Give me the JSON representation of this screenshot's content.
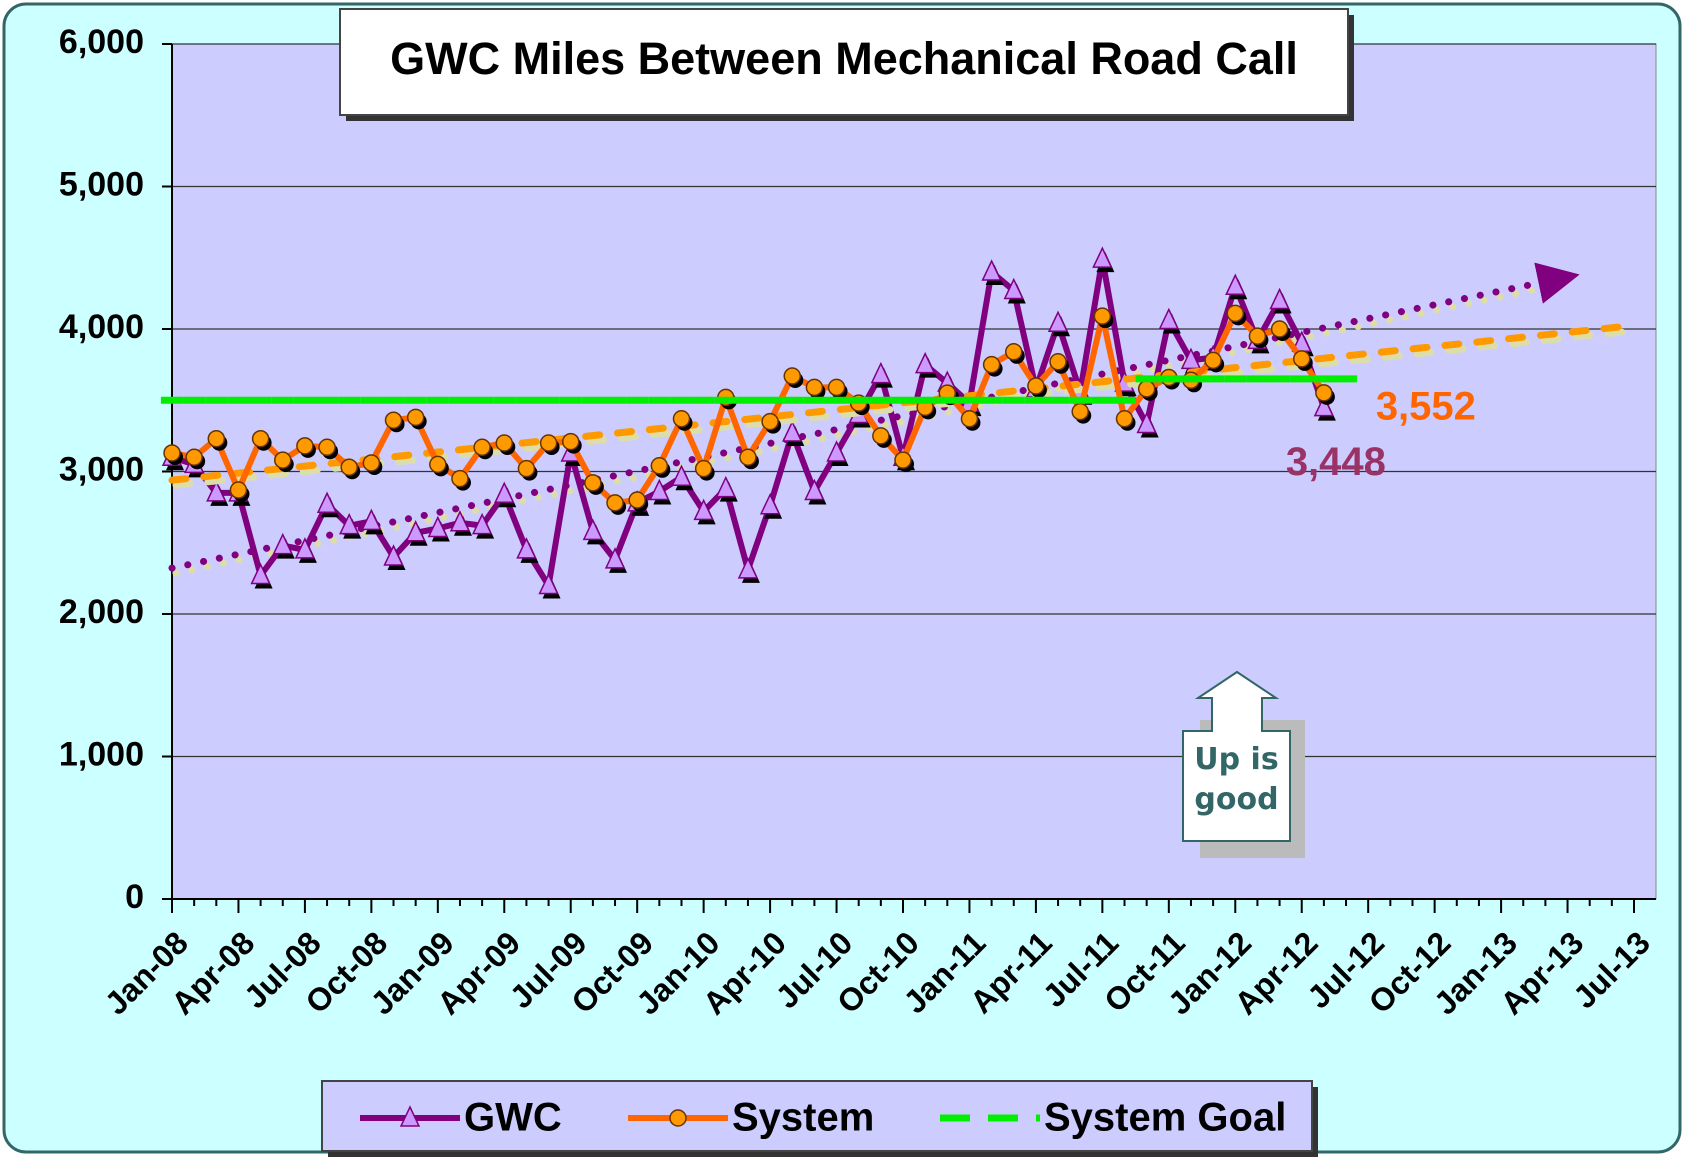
{
  "chart_data": {
    "type": "line",
    "title": "GWC Miles Between Mechanical Road Call",
    "annotation": "Up is good",
    "categories": [
      "Jan-08",
      null,
      null,
      "Apr-08",
      null,
      null,
      "Jul-08",
      null,
      null,
      "Oct-08",
      null,
      null,
      "Jan-09",
      null,
      null,
      "Apr-09",
      null,
      null,
      "Jul-09",
      null,
      null,
      "Oct-09",
      null,
      null,
      "Jan-10",
      null,
      null,
      "Apr-10",
      null,
      null,
      "Jul-10",
      null,
      null,
      "Oct-10",
      null,
      null,
      "Jan-11",
      null,
      null,
      "Apr-11",
      null,
      null,
      "Jul-11",
      null,
      null,
      "Oct-11",
      null,
      null,
      "Jan-12",
      null,
      null,
      "Apr-12",
      null,
      null,
      "Jul-12",
      null,
      null,
      "Oct-12",
      null,
      null,
      "Jan-13",
      null,
      null,
      "Apr-13",
      null,
      null,
      "Jul-13"
    ],
    "series": [
      {
        "name": "GWC",
        "color": "#800080",
        "marker": "triangle",
        "values": [
          3100,
          3050,
          2850,
          2850,
          2270,
          2480,
          2450,
          2770,
          2620,
          2650,
          2400,
          2570,
          2600,
          2640,
          2620,
          2840,
          2450,
          2200,
          3130,
          2580,
          2380,
          2780,
          2860,
          2960,
          2720,
          2880,
          2310,
          2760,
          3270,
          2860,
          3130,
          3400,
          3680,
          3100,
          3750,
          3620,
          3480,
          4400,
          4270,
          3580,
          4040,
          3560,
          4490,
          3620,
          3330,
          4060,
          3780,
          3800,
          4300,
          3920,
          4200,
          3900,
          3448,
          null,
          null,
          null,
          null,
          null,
          null,
          null,
          null,
          null,
          null,
          null,
          null,
          null,
          null
        ],
        "value_labels": [
          null,
          null,
          null,
          null,
          null,
          null,
          null,
          null,
          null,
          null,
          null,
          null,
          null,
          null,
          null,
          null,
          null,
          null,
          null,
          null,
          null,
          null,
          null,
          null,
          null,
          null,
          null,
          null,
          null,
          null,
          null,
          null,
          null,
          null,
          null,
          null,
          null,
          null,
          null,
          null,
          null,
          null,
          null,
          null,
          null,
          null,
          null,
          null,
          null,
          null,
          null,
          null,
          "3,448",
          null,
          null,
          null,
          null,
          null,
          null,
          null,
          null,
          null,
          null,
          null,
          null,
          null,
          null
        ],
        "label_color": "#993366"
      },
      {
        "name": "System",
        "color": "#ff6600",
        "marker": "circle",
        "values": [
          3130,
          3100,
          3230,
          2870,
          3230,
          3080,
          3180,
          3170,
          3030,
          3060,
          3360,
          3380,
          3050,
          2950,
          3170,
          3200,
          3020,
          3200,
          3210,
          2920,
          2780,
          2800,
          3040,
          3370,
          3020,
          3520,
          3100,
          3350,
          3670,
          3590,
          3590,
          3480,
          3250,
          3080,
          3450,
          3550,
          3370,
          3750,
          3840,
          3600,
          3770,
          3420,
          4090,
          3370,
          3580,
          3660,
          3640,
          3780,
          4110,
          3950,
          4000,
          3790,
          3552,
          null,
          null,
          null,
          null,
          null,
          null,
          null,
          null,
          null,
          null,
          null,
          null,
          null,
          null
        ],
        "value_labels": [
          null,
          null,
          null,
          null,
          null,
          null,
          null,
          null,
          null,
          null,
          null,
          null,
          null,
          null,
          null,
          null,
          null,
          null,
          null,
          null,
          null,
          null,
          null,
          null,
          null,
          null,
          null,
          null,
          null,
          null,
          null,
          null,
          null,
          null,
          null,
          null,
          null,
          null,
          null,
          null,
          null,
          null,
          null,
          null,
          null,
          null,
          null,
          null,
          null,
          null,
          null,
          null,
          "3,552",
          null,
          null,
          null,
          null,
          null,
          null,
          null,
          null,
          null,
          null,
          null,
          null,
          null,
          null
        ],
        "label_color": "#ff6600"
      },
      {
        "name": "System Goal",
        "color": "#00ee00",
        "marker": "dash",
        "values": [
          3500,
          3500,
          3500,
          3500,
          3500,
          3500,
          3500,
          3500,
          3500,
          3500,
          3500,
          3500,
          3500,
          3500,
          3500,
          3500,
          3500,
          3500,
          3500,
          3500,
          3500,
          3500,
          3500,
          3500,
          3500,
          3500,
          3500,
          3500,
          3500,
          3500,
          3500,
          3500,
          3500,
          3500,
          3500,
          3500,
          3500,
          3500,
          3500,
          3500,
          3500,
          3500,
          3500,
          3500,
          3650,
          3650,
          3650,
          3650,
          3650,
          3650,
          3650,
          3650,
          3650,
          3650,
          null,
          null,
          null,
          null,
          null,
          null,
          null,
          null,
          null,
          null,
          null,
          null,
          null
        ]
      }
    ],
    "trendlines": true,
    "ylim": [
      0,
      6000
    ],
    "yticks": [
      0,
      {
        "value": 1000,
        "label": "1,000"
      },
      {
        "value": 2000,
        "label": "2,000"
      },
      {
        "value": 3000,
        "label": "3,000"
      },
      {
        "value": 4000,
        "label": "4,000"
      },
      {
        "value": 5000,
        "label": "5,000"
      },
      {
        "value": 6000,
        "label": "6,000"
      }
    ],
    "grid": true
  }
}
